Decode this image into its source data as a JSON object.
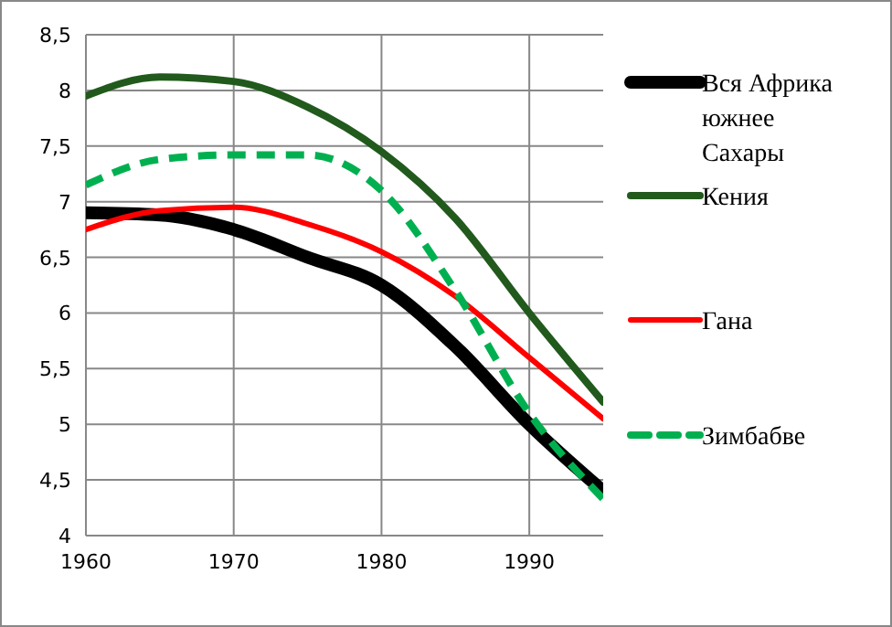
{
  "chart_data": {
    "type": "line",
    "x": [
      1960,
      1965,
      1970,
      1975,
      1980,
      1985,
      1990,
      1995
    ],
    "xlim": [
      1960,
      1995
    ],
    "xticks": [
      1960,
      1970,
      1980,
      1990
    ],
    "ylim": [
      4,
      8.5
    ],
    "yticks": [
      {
        "value": 4,
        "label": "4"
      },
      {
        "value": 4.5,
        "label": "4,5"
      },
      {
        "value": 5,
        "label": "5"
      },
      {
        "value": 5.5,
        "label": "5,5"
      },
      {
        "value": 6,
        "label": "6"
      },
      {
        "value": 6.5,
        "label": "6,5"
      },
      {
        "value": 7,
        "label": "7"
      },
      {
        "value": 7.5,
        "label": "7,5"
      },
      {
        "value": 8,
        "label": "8"
      },
      {
        "value": 8.5,
        "label": "8,5"
      }
    ],
    "grid": true,
    "legend": "right",
    "series": [
      {
        "name": "Вся Африка южнее Сахары",
        "color": "#000000",
        "values": [
          6.9,
          6.88,
          6.75,
          6.5,
          6.25,
          5.7,
          5.0,
          4.4
        ]
      },
      {
        "name": "Кения",
        "color": "#215a1c",
        "values": [
          7.95,
          8.12,
          8.08,
          7.85,
          7.45,
          6.85,
          6.0,
          5.2
        ]
      },
      {
        "name": "Гана",
        "color": "#ff0000",
        "values": [
          6.75,
          6.92,
          6.95,
          6.8,
          6.55,
          6.15,
          5.6,
          5.05
        ]
      },
      {
        "name": "Зимбабве",
        "color": "#00b050",
        "line_style": "dashed",
        "values": [
          7.15,
          7.38,
          7.42,
          7.42,
          7.1,
          6.2,
          5.1,
          4.33
        ]
      }
    ]
  }
}
